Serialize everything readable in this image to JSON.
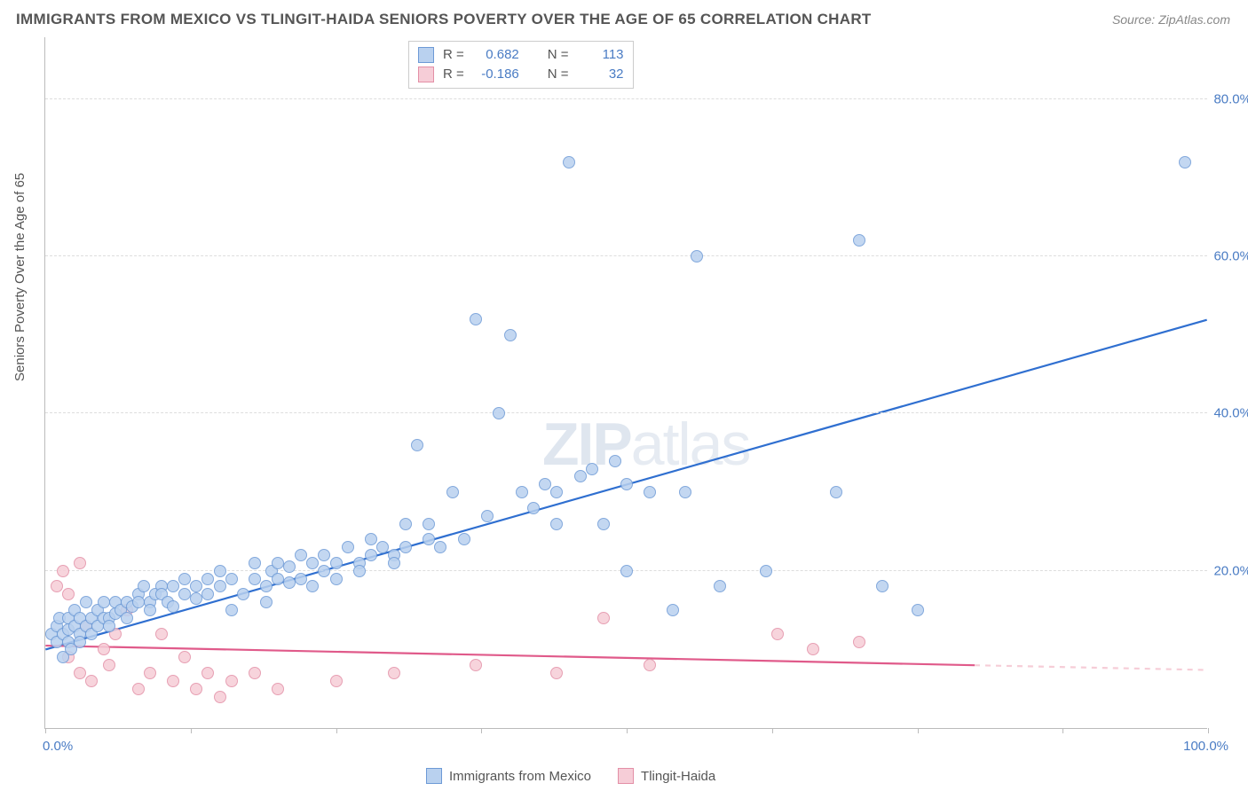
{
  "title": "IMMIGRANTS FROM MEXICO VS TLINGIT-HAIDA SENIORS POVERTY OVER THE AGE OF 65 CORRELATION CHART",
  "source": "Source: ZipAtlas.com",
  "ylabel": "Seniors Poverty Over the Age of 65",
  "watermark_a": "ZIP",
  "watermark_b": "atlas",
  "chart": {
    "type": "scatter",
    "xlim": [
      0,
      100
    ],
    "ylim": [
      0,
      88
    ],
    "xtick_positions": [
      0,
      12.5,
      25,
      37.5,
      50,
      62.5,
      75,
      87.5,
      100
    ],
    "xtick_labels": {
      "0": "0.0%",
      "100": "100.0%"
    },
    "ytick_positions": [
      20,
      40,
      60,
      80
    ],
    "ytick_labels": [
      "20.0%",
      "40.0%",
      "60.0%",
      "80.0%"
    ],
    "grid_color": "#dddddd",
    "axis_color": "#bbbbbb",
    "background_color": "#ffffff",
    "tick_label_color": "#4a7cc4",
    "tick_label_fontsize": 15,
    "point_radius": 7,
    "point_stroke_width": 1
  },
  "series": [
    {
      "name": "Immigrants from Mexico",
      "fill_color": "#b9d1ef",
      "stroke_color": "#6d9ad6",
      "line_color": "#2f6fd0",
      "line_width": 2.2,
      "trend": {
        "x1": 0,
        "y1": 10,
        "x2": 100,
        "y2": 52,
        "dashed_from": null
      },
      "R_label": "R = ",
      "R": "0.682",
      "N_label": "N = ",
      "N": "113",
      "points": [
        [
          0.5,
          12
        ],
        [
          1,
          11
        ],
        [
          1,
          13
        ],
        [
          1.2,
          14
        ],
        [
          1.5,
          9
        ],
        [
          1.5,
          12
        ],
        [
          2,
          11
        ],
        [
          2,
          14
        ],
        [
          2,
          12.5
        ],
        [
          2.2,
          10
        ],
        [
          2.5,
          13
        ],
        [
          2.5,
          15
        ],
        [
          3,
          12
        ],
        [
          3,
          14
        ],
        [
          3,
          11
        ],
        [
          3.5,
          16
        ],
        [
          3.5,
          13
        ],
        [
          4,
          14
        ],
        [
          4,
          12
        ],
        [
          4.5,
          15
        ],
        [
          4.5,
          13
        ],
        [
          5,
          14
        ],
        [
          5,
          16
        ],
        [
          5.5,
          14
        ],
        [
          5.5,
          13
        ],
        [
          6,
          16
        ],
        [
          6,
          14.5
        ],
        [
          6.5,
          15
        ],
        [
          7,
          16
        ],
        [
          7,
          14
        ],
        [
          7.5,
          15.5
        ],
        [
          8,
          17
        ],
        [
          8,
          16
        ],
        [
          8.5,
          18
        ],
        [
          9,
          16
        ],
        [
          9,
          15
        ],
        [
          9.5,
          17
        ],
        [
          10,
          18
        ],
        [
          10,
          17
        ],
        [
          10.5,
          16
        ],
        [
          11,
          18
        ],
        [
          11,
          15.5
        ],
        [
          12,
          17
        ],
        [
          12,
          19
        ],
        [
          13,
          18
        ],
        [
          13,
          16.5
        ],
        [
          14,
          19
        ],
        [
          14,
          17
        ],
        [
          15,
          20
        ],
        [
          15,
          18
        ],
        [
          16,
          15
        ],
        [
          16,
          19
        ],
        [
          17,
          17
        ],
        [
          18,
          21
        ],
        [
          18,
          19
        ],
        [
          19,
          18
        ],
        [
          19,
          16
        ],
        [
          19.5,
          20
        ],
        [
          20,
          21
        ],
        [
          20,
          19
        ],
        [
          21,
          18.5
        ],
        [
          21,
          20.5
        ],
        [
          22,
          22
        ],
        [
          22,
          19
        ],
        [
          23,
          18
        ],
        [
          23,
          21
        ],
        [
          24,
          20
        ],
        [
          24,
          22
        ],
        [
          25,
          21
        ],
        [
          25,
          19
        ],
        [
          26,
          23
        ],
        [
          27,
          21
        ],
        [
          27,
          20
        ],
        [
          28,
          24
        ],
        [
          28,
          22
        ],
        [
          29,
          23
        ],
        [
          30,
          22
        ],
        [
          30,
          21
        ],
        [
          31,
          26
        ],
        [
          31,
          23
        ],
        [
          32,
          36
        ],
        [
          33,
          26
        ],
        [
          33,
          24
        ],
        [
          34,
          23
        ],
        [
          35,
          30
        ],
        [
          36,
          24
        ],
        [
          37,
          52
        ],
        [
          38,
          27
        ],
        [
          39,
          40
        ],
        [
          40,
          50
        ],
        [
          41,
          30
        ],
        [
          42,
          28
        ],
        [
          43,
          31
        ],
        [
          44,
          30
        ],
        [
          44,
          26
        ],
        [
          45,
          72
        ],
        [
          46,
          32
        ],
        [
          47,
          33
        ],
        [
          48,
          26
        ],
        [
          49,
          34
        ],
        [
          50,
          31
        ],
        [
          50,
          20
        ],
        [
          52,
          30
        ],
        [
          54,
          15
        ],
        [
          55,
          30
        ],
        [
          56,
          60
        ],
        [
          58,
          18
        ],
        [
          62,
          20
        ],
        [
          68,
          30
        ],
        [
          70,
          62
        ],
        [
          72,
          18
        ],
        [
          75,
          15
        ],
        [
          98,
          72
        ]
      ]
    },
    {
      "name": "Tlingit-Haida",
      "fill_color": "#f6cdd7",
      "stroke_color": "#e38fa6",
      "line_color": "#e05a8a",
      "line_width": 2.2,
      "trend": {
        "x1": 0,
        "y1": 10.5,
        "x2": 80,
        "y2": 8,
        "dashed_from": 80,
        "x3": 100,
        "y3": 7.4
      },
      "R_label": "R = ",
      "R": "-0.186",
      "N_label": "N = ",
      "N": "32",
      "points": [
        [
          1,
          18
        ],
        [
          1.5,
          20
        ],
        [
          2,
          17
        ],
        [
          2,
          9
        ],
        [
          3,
          21
        ],
        [
          3,
          7
        ],
        [
          3.5,
          13
        ],
        [
          4,
          6
        ],
        [
          5,
          10
        ],
        [
          5.5,
          8
        ],
        [
          6,
          12
        ],
        [
          7,
          15
        ],
        [
          8,
          5
        ],
        [
          9,
          7
        ],
        [
          10,
          12
        ],
        [
          11,
          6
        ],
        [
          12,
          9
        ],
        [
          13,
          5
        ],
        [
          14,
          7
        ],
        [
          15,
          4
        ],
        [
          16,
          6
        ],
        [
          18,
          7
        ],
        [
          20,
          5
        ],
        [
          25,
          6
        ],
        [
          30,
          7
        ],
        [
          37,
          8
        ],
        [
          44,
          7
        ],
        [
          48,
          14
        ],
        [
          52,
          8
        ],
        [
          63,
          12
        ],
        [
          66,
          10
        ],
        [
          70,
          11
        ]
      ]
    }
  ],
  "corr_legend": {
    "border_color": "#cccccc"
  },
  "series_legend": {
    "position": "bottom"
  }
}
